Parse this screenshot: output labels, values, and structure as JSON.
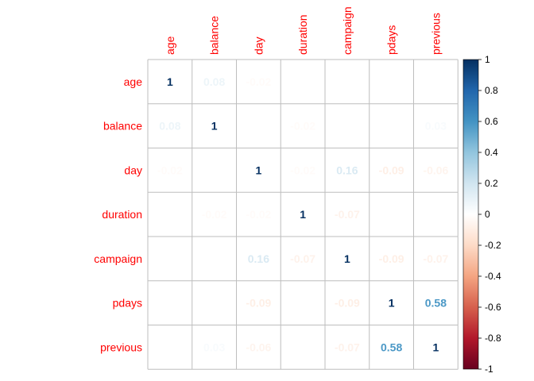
{
  "chart_data": {
    "type": "heatmap",
    "title": "",
    "variables": [
      "age",
      "balance",
      "day",
      "duration",
      "campaign",
      "pdays",
      "previous"
    ],
    "x_labels": [
      "age",
      "balance",
      "day",
      "duration",
      "campaign",
      "pdays",
      "previous"
    ],
    "y_labels": [
      "age",
      "balance",
      "day",
      "duration",
      "campaign",
      "pdays",
      "previous"
    ],
    "cells": [
      {
        "row": 0,
        "col": 0,
        "value": 1,
        "label": "1"
      },
      {
        "row": 0,
        "col": 1,
        "value": 0.08,
        "label": "0.08"
      },
      {
        "row": 0,
        "col": 2,
        "value": -0.02,
        "label": "-0.02"
      },
      {
        "row": 1,
        "col": 0,
        "value": 0.08,
        "label": "0.08"
      },
      {
        "row": 1,
        "col": 1,
        "value": 1,
        "label": "1"
      },
      {
        "row": 1,
        "col": 3,
        "value": -0.02,
        "label": "-0.02"
      },
      {
        "row": 1,
        "col": 6,
        "value": 0.03,
        "label": "0.03"
      },
      {
        "row": 2,
        "col": 0,
        "value": -0.02,
        "label": "-0.02"
      },
      {
        "row": 2,
        "col": 2,
        "value": 1,
        "label": "1"
      },
      {
        "row": 2,
        "col": 3,
        "value": -0.02,
        "label": "-0.02"
      },
      {
        "row": 2,
        "col": 4,
        "value": 0.16,
        "label": "0.16"
      },
      {
        "row": 2,
        "col": 5,
        "value": -0.09,
        "label": "-0.09"
      },
      {
        "row": 2,
        "col": 6,
        "value": -0.06,
        "label": "-0.06"
      },
      {
        "row": 3,
        "col": 1,
        "value": -0.02,
        "label": "-0.02"
      },
      {
        "row": 3,
        "col": 2,
        "value": -0.02,
        "label": "-0.02"
      },
      {
        "row": 3,
        "col": 3,
        "value": 1,
        "label": "1"
      },
      {
        "row": 3,
        "col": 4,
        "value": -0.07,
        "label": "-0.07"
      },
      {
        "row": 3,
        "col": 5,
        "value": 0,
        "label": "0"
      },
      {
        "row": 3,
        "col": 6,
        "value": 0,
        "label": "0"
      },
      {
        "row": 4,
        "col": 2,
        "value": 0.16,
        "label": "0.16"
      },
      {
        "row": 4,
        "col": 3,
        "value": -0.07,
        "label": "-0.07"
      },
      {
        "row": 4,
        "col": 4,
        "value": 1,
        "label": "1"
      },
      {
        "row": 4,
        "col": 5,
        "value": -0.09,
        "label": "-0.09"
      },
      {
        "row": 4,
        "col": 6,
        "value": -0.07,
        "label": "-0.07"
      },
      {
        "row": 5,
        "col": 2,
        "value": -0.09,
        "label": "-0.09"
      },
      {
        "row": 5,
        "col": 3,
        "value": 0,
        "label": "0"
      },
      {
        "row": 5,
        "col": 4,
        "value": -0.09,
        "label": "-0.09"
      },
      {
        "row": 5,
        "col": 5,
        "value": 1,
        "label": "1"
      },
      {
        "row": 5,
        "col": 6,
        "value": 0.58,
        "label": "0.58"
      },
      {
        "row": 6,
        "col": 1,
        "value": 0.03,
        "label": "0.03"
      },
      {
        "row": 6,
        "col": 2,
        "value": -0.06,
        "label": "-0.06"
      },
      {
        "row": 6,
        "col": 3,
        "value": 0,
        "label": "0"
      },
      {
        "row": 6,
        "col": 4,
        "value": -0.07,
        "label": "-0.07"
      },
      {
        "row": 6,
        "col": 5,
        "value": 0.58,
        "label": "0.58"
      },
      {
        "row": 6,
        "col": 6,
        "value": 1,
        "label": "1"
      }
    ],
    "color_scale": {
      "min": -1,
      "max": 1,
      "ticks": [
        "1",
        "0.8",
        "0.6",
        "0.4",
        "0.2",
        "0",
        "-0.2",
        "-0.4",
        "-0.6",
        "-0.8",
        "-1"
      ],
      "negative_color": "#67001F",
      "mid_color": "#FFFFFF",
      "positive_color": "#053061"
    },
    "label_color": "#FF0000",
    "grid_color": "#BEBEBE",
    "legend_position": "right"
  }
}
